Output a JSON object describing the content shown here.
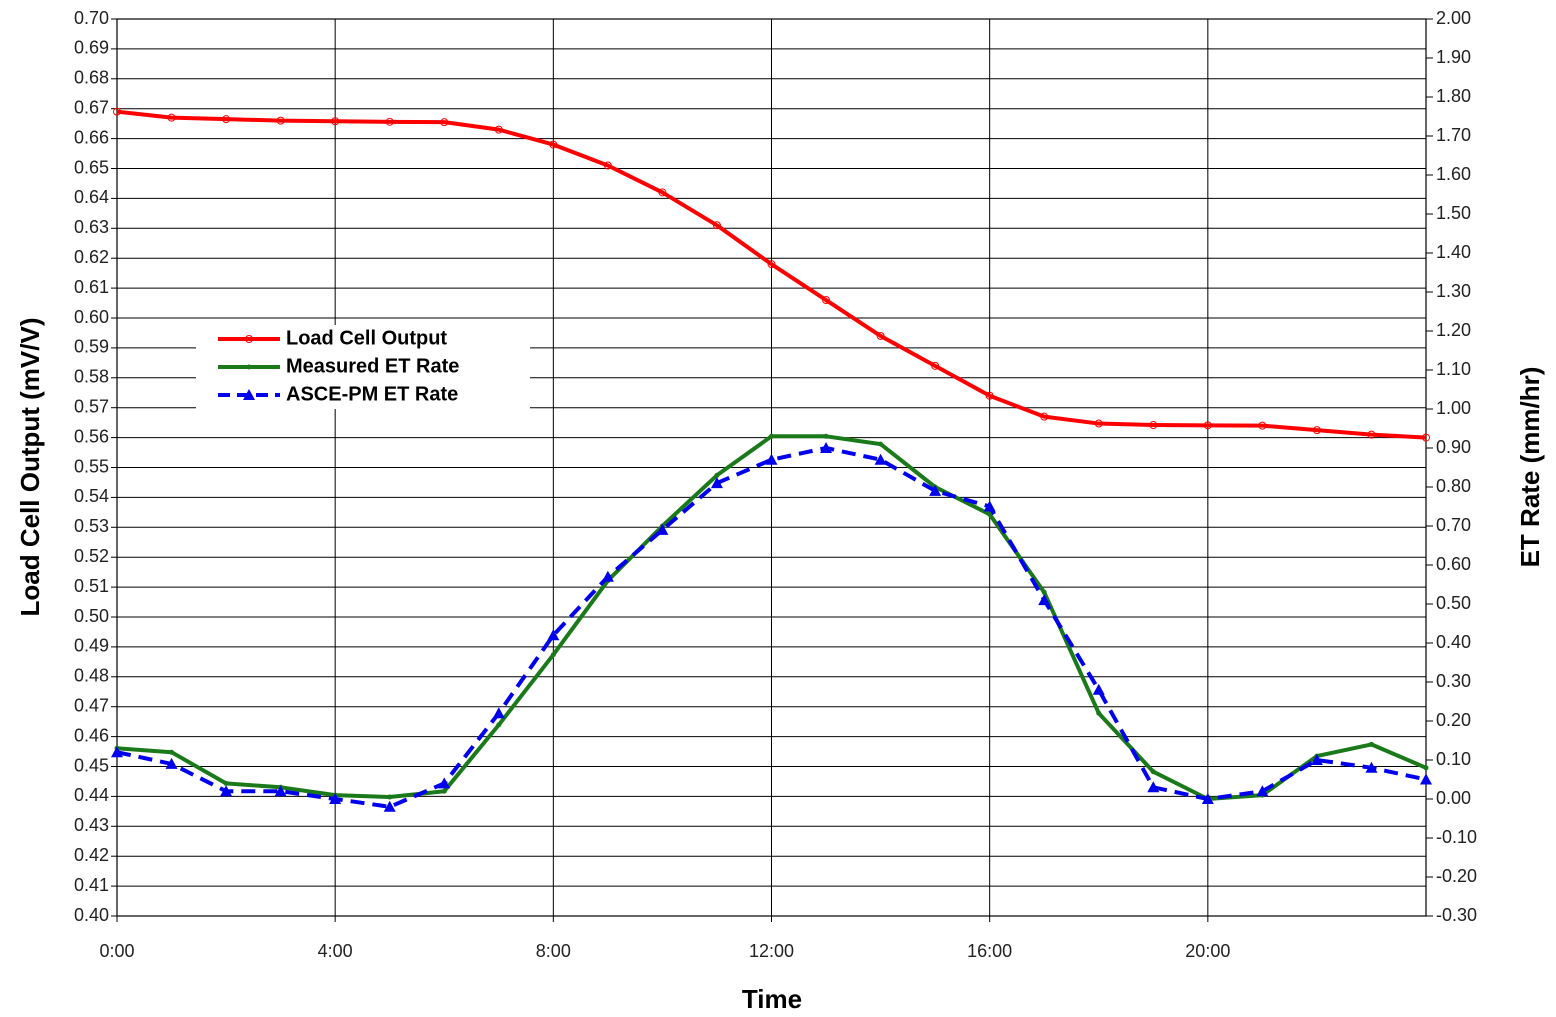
{
  "chart_data": {
    "type": "line",
    "x_label": "Time",
    "y_label": "Load Cell Output (mV/V)",
    "y2_label": "ET Rate (mm/hr)",
    "x": [
      0,
      1,
      2,
      3,
      4,
      5,
      6,
      7,
      8,
      9,
      10,
      11,
      12,
      13,
      14,
      15,
      16,
      17,
      18,
      19,
      20,
      21,
      22,
      23,
      24
    ],
    "xlim": [
      0,
      24
    ],
    "xticks": [
      {
        "value": 0,
        "label": "0:00"
      },
      {
        "value": 4,
        "label": "4:00"
      },
      {
        "value": 8,
        "label": "8:00"
      },
      {
        "value": 12,
        "label": "12:00"
      },
      {
        "value": 16,
        "label": "16:00"
      },
      {
        "value": 20,
        "label": "20:00"
      }
    ],
    "ylim": [
      0.4,
      0.7
    ],
    "yticks": [
      {
        "value": 0.4,
        "label": "0.40"
      },
      0.41,
      0.42,
      0.43,
      0.44,
      0.45,
      0.46,
      0.47,
      0.48,
      0.49,
      {
        "value": 0.5,
        "label": "0.50"
      },
      0.51,
      0.52,
      0.53,
      0.54,
      0.55,
      0.56,
      0.57,
      0.58,
      0.59,
      {
        "value": 0.6,
        "label": "0.60"
      },
      0.61,
      0.62,
      0.63,
      0.64,
      0.65,
      0.66,
      0.67,
      0.68,
      0.69,
      {
        "value": 0.7,
        "label": "0.70"
      }
    ],
    "y2lim": [
      -0.3,
      2.0
    ],
    "y2ticks": [
      {
        "value": -0.3,
        "label": "-0.30"
      },
      {
        "value": -0.2,
        "label": "-0.20"
      },
      {
        "value": -0.1,
        "label": "-0.10"
      },
      {
        "value": 0,
        "label": "0.00"
      },
      {
        "value": 0.1,
        "label": "0.10"
      },
      {
        "value": 0.2,
        "label": "0.20"
      },
      {
        "value": 0.3,
        "label": "0.30"
      },
      {
        "value": 0.4,
        "label": "0.40"
      },
      {
        "value": 0.5,
        "label": "0.50"
      },
      {
        "value": 0.6,
        "label": "0.60"
      },
      {
        "value": 0.7,
        "label": "0.70"
      },
      {
        "value": 0.8,
        "label": "0.80"
      },
      {
        "value": 0.9,
        "label": "0.90"
      },
      {
        "value": 1.0,
        "label": "1.00"
      },
      {
        "value": 1.1,
        "label": "1.10"
      },
      {
        "value": 1.2,
        "label": "1.20"
      },
      {
        "value": 1.3,
        "label": "1.30"
      },
      {
        "value": 1.4,
        "label": "1.40"
      },
      {
        "value": 1.5,
        "label": "1.50"
      },
      {
        "value": 1.6,
        "label": "1.60"
      },
      {
        "value": 1.7,
        "label": "1.70"
      },
      {
        "value": 1.8,
        "label": "1.80"
      },
      {
        "value": 1.9,
        "label": "1.90"
      },
      {
        "value": 2.0,
        "label": "2.00"
      }
    ],
    "grid": true,
    "legend_position": "left",
    "series": [
      {
        "name": "Load Cell Output",
        "color": "#ff0000",
        "marker": "circle",
        "dash": false,
        "axis": "y",
        "values": [
          0.669,
          0.667,
          0.6665,
          0.666,
          0.6658,
          0.6656,
          0.6655,
          0.663,
          0.658,
          0.651,
          0.642,
          0.631,
          0.618,
          0.606,
          0.594,
          0.584,
          0.574,
          0.567,
          0.5647,
          0.5642,
          0.5641,
          0.564,
          0.5625,
          0.561,
          0.56
        ]
      },
      {
        "name": "Measured ET Rate",
        "color": "#1a7a1a",
        "marker": "dot",
        "dash": false,
        "axis": "y2",
        "values": [
          0.13,
          0.12,
          0.04,
          0.03,
          0.01,
          0.005,
          0.02,
          0.19,
          0.37,
          0.56,
          0.7,
          0.83,
          0.93,
          0.93,
          0.91,
          0.8,
          0.73,
          0.53,
          0.22,
          0.07,
          0.0,
          0.01,
          0.11,
          0.14,
          0.08
        ]
      },
      {
        "name": "ASCE-PM ET Rate",
        "color": "#0000ee",
        "marker": "triangle",
        "dash": true,
        "axis": "y2",
        "values": [
          0.12,
          0.09,
          0.02,
          0.02,
          0.0,
          -0.02,
          0.04,
          0.22,
          0.42,
          0.57,
          0.69,
          0.81,
          0.87,
          0.9,
          0.87,
          0.79,
          0.75,
          0.51,
          0.28,
          0.03,
          0.0,
          0.02,
          0.1,
          0.08,
          0.05
        ]
      }
    ]
  }
}
